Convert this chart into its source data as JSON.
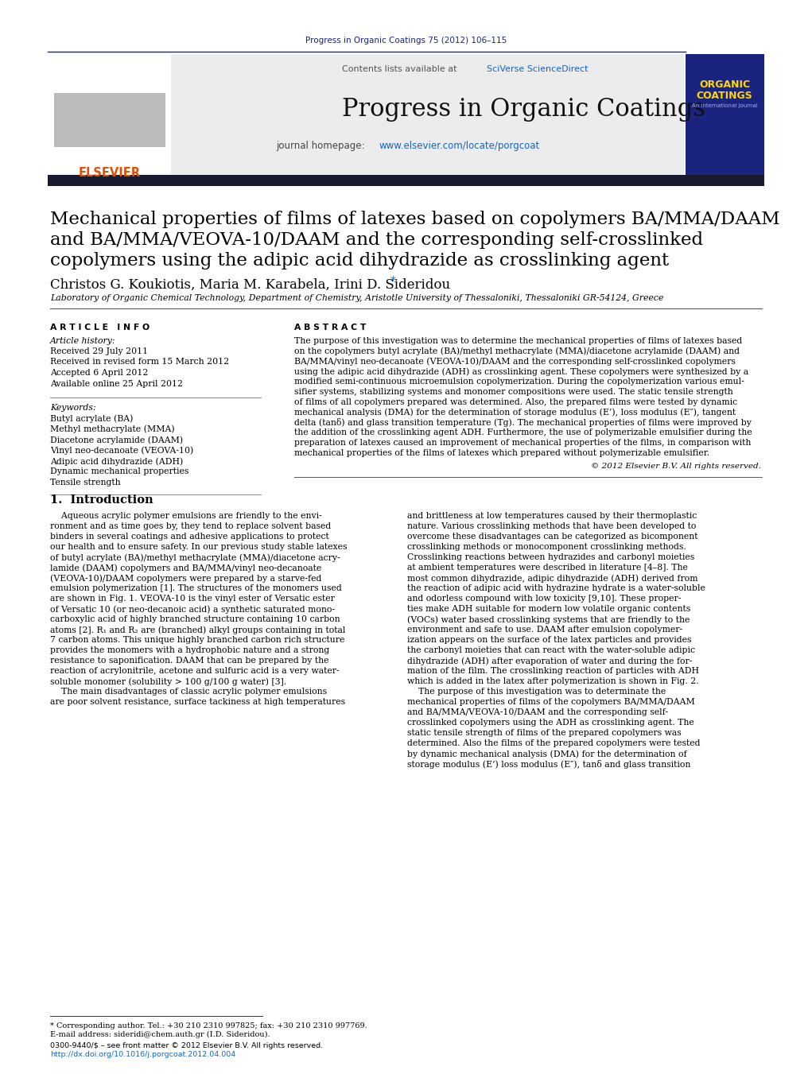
{
  "journal_ref": "Progress in Organic Coatings 75 (2012) 106–115",
  "journal_ref_color": "#1a237e",
  "sciverse_color": "#1565C0",
  "journal_name": "Progress in Organic Coatings",
  "journal_url_color": "#1565C0",
  "title_line1": "Mechanical properties of films of latexes based on copolymers BA/MMA/DAAM",
  "title_line2": "and BA/MMA/VEOVA-10/DAAM and the corresponding self-crosslinked",
  "title_line3": "copolymers using the adipic acid dihydrazide as crosslinking agent",
  "authors_main": "Christos G. Koukiotis, Maria M. Karabela, Irini D. Sideridou",
  "affiliation": "Laboratory of Organic Chemical Technology, Department of Chemistry, Aristotle University of Thessaloniki, Thessaloniki GR-54124, Greece",
  "received1": "Received 29 July 2011",
  "received2": "Received in revised form 15 March 2012",
  "accepted": "Accepted 6 April 2012",
  "available": "Available online 25 April 2012",
  "keywords": [
    "Butyl acrylate (BA)",
    "Methyl methacrylate (MMA)",
    "Diacetone acrylamide (DAAM)",
    "Vinyl neo-decanoate (VEOVA-10)",
    "Adipic acid dihydrazide (ADH)",
    "Dynamic mechanical properties",
    "Tensile strength"
  ],
  "abstract_lines": [
    "The purpose of this investigation was to determine the mechanical properties of films of latexes based",
    "on the copolymers butyl acrylate (BA)/methyl methacrylate (MMA)/diacetone acrylamide (DAAM) and",
    "BA/MMA/vinyl neo-decanoate (VEOVA-10)/DAAM and the corresponding self-crosslinked copolymers",
    "using the adipic acid dihydrazide (ADH) as crosslinking agent. These copolymers were synthesized by a",
    "modified semi-continuous microemulsion copolymerization. During the copolymerization various emul-",
    "sifier systems, stabilizing systems and monomer compositions were used. The static tensile strength",
    "of films of all copolymers prepared was determined. Also, the prepared films were tested by dynamic",
    "mechanical analysis (DMA) for the determination of storage modulus (E’), loss modulus (E″), tangent",
    "delta (tanδ) and glass transition temperature (Tg). The mechanical properties of films were improved by",
    "the addition of the crosslinking agent ADH. Furthermore, the use of polymerizable emulsifier during the",
    "preparation of latexes caused an improvement of mechanical properties of the films, in comparison with",
    "mechanical properties of the films of latexes which prepared without polymerizable emulsifier."
  ],
  "copyright": "© 2012 Elsevier B.V. All rights reserved.",
  "section1_header": "1.  Introduction",
  "intro1_lines": [
    "    Aqueous acrylic polymer emulsions are friendly to the envi-",
    "ronment and as time goes by, they tend to replace solvent based",
    "binders in several coatings and adhesive applications to protect",
    "our health and to ensure safety. In our previous study stable latexes",
    "of butyl acrylate (BA)/methyl methacrylate (MMA)/diacetone acry-",
    "lamide (DAAM) copolymers and BA/MMA/vinyl neo-decanoate",
    "(VEOVA-10)/DAAM copolymers were prepared by a starve-fed",
    "emulsion polymerization [1]. The structures of the monomers used",
    "are shown in Fig. 1. VEOVA-10 is the vinyl ester of Versatic ester",
    "of Versatic 10 (or neo-decanoic acid) a synthetic saturated mono-",
    "carboxylic acid of highly branched structure containing 10 carbon",
    "atoms [2]. R₁ and R₂ are (branched) alkyl groups containing in total",
    "7 carbon atoms. This unique highly branched carbon rich structure",
    "provides the monomers with a hydrophobic nature and a strong",
    "resistance to saponification. DAAM that can be prepared by the",
    "reaction of acrylonitrile, acetone and sulfuric acid is a very water-",
    "soluble monomer (solubility > 100 g/100 g water) [3].",
    "    The main disadvantages of classic acrylic polymer emulsions",
    "are poor solvent resistance, surface tackiness at high temperatures"
  ],
  "intro2_lines": [
    "and brittleness at low temperatures caused by their thermoplastic",
    "nature. Various crosslinking methods that have been developed to",
    "overcome these disadvantages can be categorized as bicomponent",
    "crosslinking methods or monocomponent crosslinking methods.",
    "Crosslinking reactions between hydrazides and carbonyl moieties",
    "at ambient temperatures were described in literature [4–8]. The",
    "most common dihydrazide, adipic dihydrazide (ADH) derived from",
    "the reaction of adipic acid with hydrazine hydrate is a water-soluble",
    "and odorless compound with low toxicity [9,10]. These proper-",
    "ties make ADH suitable for modern low volatile organic contents",
    "(VOCs) water based crosslinking systems that are friendly to the",
    "environment and safe to use. DAAM after emulsion copolymer-",
    "ization appears on the surface of the latex particles and provides",
    "the carbonyl moieties that can react with the water-soluble adipic",
    "dihydrazide (ADH) after evaporation of water and during the for-",
    "mation of the film. The crosslinking reaction of particles with ADH",
    "which is added in the latex after polymerization is shown in Fig. 2.",
    "    The purpose of this investigation was to determinate the",
    "mechanical properties of films of the copolymers BA/MMA/DAAM",
    "and BA/MMA/VEOVA-10/DAAM and the corresponding self-",
    "crosslinked copolymers using the ADH as crosslinking agent. The",
    "static tensile strength of films of the prepared copolymers was",
    "determined. Also the films of the prepared copolymers were tested",
    "by dynamic mechanical analysis (DMA) for the determination of",
    "storage modulus (E’) loss modulus (E″), tanδ and glass transition"
  ],
  "footnote_star": "* Corresponding author. Tel.: +30 210 2310 997825; fax: +30 210 2310 997769.",
  "footnote_email": "E-mail address: sideridi@chem.auth.gr (I.D. Sideridou).",
  "issn_line": "0300-9440/$ – see front matter © 2012 Elsevier B.V. All rights reserved.",
  "doi_line": "http://dx.doi.org/10.1016/j.porgcoat.2012.04.004",
  "bg_color": "#ffffff",
  "dark_bar_color": "#222233",
  "border_color": "#1a237e",
  "text_color": "#000000"
}
